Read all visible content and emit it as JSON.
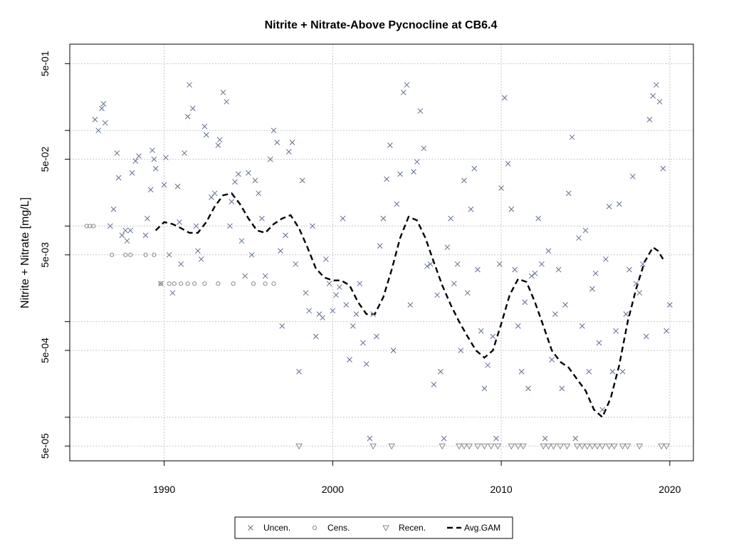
{
  "chart_data": {
    "type": "scatter",
    "title": "Nitrite + Nitrate-Above Pycnocline at CB6.4",
    "xlabel": "",
    "ylabel": "Nitrite + Nitrate [mg/L]",
    "xlim": [
      1984.4,
      2021.4
    ],
    "ylim": [
      3.5e-05,
      0.8
    ],
    "log_y": true,
    "grid": true,
    "x_ticks": [
      1990,
      2000,
      2010,
      2020
    ],
    "x_tick_labels": [
      "1990",
      "2000",
      "2010",
      "2020"
    ],
    "y_ticks": [
      5e-05,
      0.0005,
      0.005,
      0.05,
      0.5
    ],
    "y_tick_labels": [
      "5e-05",
      "5e-04",
      "5e-03",
      "5e-02",
      "5e-01"
    ],
    "legend_position": "bottom",
    "legend": [
      {
        "label": "Uncen.",
        "symbol": "x"
      },
      {
        "label": "Cens.",
        "symbol": "o"
      },
      {
        "label": "Recen.",
        "symbol": "triangle-down"
      },
      {
        "label": "Avg.GAM",
        "symbol": "dashed-line"
      }
    ],
    "colors": {
      "uncen": "#5f6f8f",
      "cens": "#8a8a8a",
      "recen": "#8a8a8a",
      "gam": "#000000",
      "grid": "#c8c8c8"
    },
    "series": [
      {
        "name": "Uncen.",
        "points": [
          [
            1985.9,
            0.13
          ],
          [
            1986.1,
            0.1
          ],
          [
            1986.3,
            0.17
          ],
          [
            1986.4,
            0.19
          ],
          [
            1986.5,
            0.12
          ],
          [
            1986.8,
            0.01
          ],
          [
            1987.0,
            0.015
          ],
          [
            1987.2,
            0.058
          ],
          [
            1987.3,
            0.032
          ],
          [
            1987.5,
            0.008
          ],
          [
            1987.7,
            0.009
          ],
          [
            1987.8,
            0.007
          ],
          [
            1988.0,
            0.009
          ],
          [
            1988.1,
            0.036
          ],
          [
            1988.3,
            0.048
          ],
          [
            1988.5,
            0.054
          ],
          [
            1988.9,
            0.008
          ],
          [
            1989.0,
            0.012
          ],
          [
            1989.2,
            0.024
          ],
          [
            1989.3,
            0.062
          ],
          [
            1989.4,
            0.05
          ],
          [
            1989.5,
            0.04
          ],
          [
            1989.8,
            0.0025
          ],
          [
            1990.0,
            0.027
          ],
          [
            1990.1,
            0.052
          ],
          [
            1990.3,
            0.005
          ],
          [
            1990.5,
            0.002
          ],
          [
            1990.8,
            0.026
          ],
          [
            1990.9,
            0.011
          ],
          [
            1991.0,
            0.004
          ],
          [
            1991.2,
            0.058
          ],
          [
            1991.4,
            0.14
          ],
          [
            1991.5,
            0.3
          ],
          [
            1991.7,
            0.17
          ],
          [
            1991.9,
            0.01
          ],
          [
            1992.0,
            0.0055
          ],
          [
            1992.2,
            0.0045
          ],
          [
            1992.4,
            0.11
          ],
          [
            1992.5,
            0.09
          ],
          [
            1992.8,
            0.02
          ],
          [
            1993.0,
            0.022
          ],
          [
            1993.2,
            0.07
          ],
          [
            1993.3,
            0.08
          ],
          [
            1993.5,
            0.25
          ],
          [
            1993.7,
            0.2
          ],
          [
            1993.9,
            0.01
          ],
          [
            1994.0,
            0.018
          ],
          [
            1994.2,
            0.029
          ],
          [
            1994.4,
            0.035
          ],
          [
            1994.6,
            0.007
          ],
          [
            1994.8,
            0.003
          ],
          [
            1995.0,
            0.036
          ],
          [
            1995.2,
            0.005
          ],
          [
            1995.4,
            0.03
          ],
          [
            1995.6,
            0.022
          ],
          [
            1995.8,
            0.012
          ],
          [
            1996.0,
            0.003
          ],
          [
            1996.3,
            0.05
          ],
          [
            1996.5,
            0.1
          ],
          [
            1996.7,
            0.075
          ],
          [
            1996.9,
            0.0055
          ],
          [
            1997.0,
            0.0009
          ],
          [
            1997.2,
            0.008
          ],
          [
            1997.4,
            0.06
          ],
          [
            1997.6,
            0.075
          ],
          [
            1997.8,
            0.004
          ],
          [
            1998.0,
            0.0003
          ],
          [
            1998.2,
            0.03
          ],
          [
            1998.4,
            0.002
          ],
          [
            1998.6,
            0.0013
          ],
          [
            1998.8,
            0.01
          ],
          [
            1999.0,
            0.0007
          ],
          [
            1999.2,
            0.0012
          ],
          [
            1999.4,
            0.0011
          ],
          [
            1999.6,
            0.0045
          ],
          [
            1999.8,
            0.0025
          ],
          [
            2000.0,
            0.0013
          ],
          [
            2000.2,
            0.0019
          ],
          [
            2000.4,
            0.0023
          ],
          [
            2000.6,
            0.012
          ],
          [
            2000.8,
            0.0015
          ],
          [
            2001.0,
            0.0004
          ],
          [
            2001.2,
            0.0009
          ],
          [
            2001.4,
            0.0012
          ],
          [
            2001.6,
            0.0025
          ],
          [
            2001.8,
            0.0006
          ],
          [
            2002.0,
            0.00036
          ],
          [
            2002.2,
            6e-05
          ],
          [
            2002.4,
            0.0012
          ],
          [
            2002.6,
            0.0007
          ],
          [
            2002.8,
            0.0062
          ],
          [
            2003.0,
            0.012
          ],
          [
            2003.2,
            0.031
          ],
          [
            2003.4,
            0.07
          ],
          [
            2003.6,
            0.0005
          ],
          [
            2003.8,
            0.017
          ],
          [
            2004.0,
            0.035
          ],
          [
            2004.2,
            0.25
          ],
          [
            2004.4,
            0.3
          ],
          [
            2004.6,
            0.0015
          ],
          [
            2004.8,
            0.037
          ],
          [
            2005.0,
            0.047
          ],
          [
            2005.2,
            0.16
          ],
          [
            2005.4,
            0.065
          ],
          [
            2005.6,
            0.0038
          ],
          [
            2005.8,
            0.004
          ],
          [
            2006.0,
            0.00022
          ],
          [
            2006.2,
            0.0019
          ],
          [
            2006.4,
            0.0003
          ],
          [
            2006.6,
            6e-05
          ],
          [
            2006.8,
            0.006
          ],
          [
            2007.0,
            0.012
          ],
          [
            2007.2,
            0.0025
          ],
          [
            2007.4,
            0.004
          ],
          [
            2007.6,
            0.0005
          ],
          [
            2007.8,
            0.03
          ],
          [
            2008.0,
            0.002
          ],
          [
            2008.2,
            0.015
          ],
          [
            2008.4,
            0.04
          ],
          [
            2008.6,
            0.0035
          ],
          [
            2008.8,
            0.0008
          ],
          [
            2009.0,
            0.0002
          ],
          [
            2009.2,
            0.00035
          ],
          [
            2009.5,
            0.0007
          ],
          [
            2009.7,
            6e-05
          ],
          [
            2009.9,
            0.004
          ],
          [
            2010.0,
            0.025
          ],
          [
            2010.2,
            0.22
          ],
          [
            2010.4,
            0.045
          ],
          [
            2010.6,
            0.015
          ],
          [
            2010.8,
            0.0035
          ],
          [
            2011.0,
            0.0009
          ],
          [
            2011.2,
            0.0003
          ],
          [
            2011.4,
            0.0016
          ],
          [
            2011.6,
            0.0002
          ],
          [
            2011.8,
            0.003
          ],
          [
            2012.0,
            0.0032
          ],
          [
            2012.2,
            0.012
          ],
          [
            2012.4,
            0.004
          ],
          [
            2012.6,
            6e-05
          ],
          [
            2012.8,
            0.0055
          ],
          [
            2013.0,
            0.0004
          ],
          [
            2013.2,
            0.0012
          ],
          [
            2013.4,
            0.0035
          ],
          [
            2013.6,
            0.0002
          ],
          [
            2013.8,
            0.0015
          ],
          [
            2014.0,
            0.022
          ],
          [
            2014.2,
            0.085
          ],
          [
            2014.4,
            6e-05
          ],
          [
            2014.6,
            0.0075
          ],
          [
            2014.8,
            0.0009
          ],
          [
            2015.0,
            0.009
          ],
          [
            2015.2,
            0.0003
          ],
          [
            2015.4,
            0.0022
          ],
          [
            2015.6,
            0.0032
          ],
          [
            2015.8,
            0.0006
          ],
          [
            2016.0,
            0.00012
          ],
          [
            2016.2,
            0.0045
          ],
          [
            2016.4,
            0.016
          ],
          [
            2016.6,
            0.0003
          ],
          [
            2016.8,
            0.0008
          ],
          [
            2017.0,
            0.017
          ],
          [
            2017.2,
            0.0003
          ],
          [
            2017.4,
            0.0012
          ],
          [
            2017.6,
            0.0035
          ],
          [
            2017.8,
            0.033
          ],
          [
            2018.0,
            0.0025
          ],
          [
            2018.2,
            0.002
          ],
          [
            2018.4,
            0.004
          ],
          [
            2018.6,
            0.0007
          ],
          [
            2018.8,
            0.13
          ],
          [
            2019.0,
            0.23
          ],
          [
            2019.2,
            0.3
          ],
          [
            2019.4,
            0.2
          ],
          [
            2019.6,
            0.04
          ],
          [
            2019.8,
            0.0008
          ],
          [
            2020.0,
            0.0015
          ]
        ]
      },
      {
        "name": "Cens.",
        "points": [
          [
            1985.4,
            0.01
          ],
          [
            1985.6,
            0.01
          ],
          [
            1985.8,
            0.01
          ],
          [
            1986.9,
            0.005
          ],
          [
            1987.7,
            0.005
          ],
          [
            1988.0,
            0.005
          ],
          [
            1988.9,
            0.005
          ],
          [
            1989.4,
            0.005
          ],
          [
            1989.8,
            0.0025
          ],
          [
            1990.3,
            0.0025
          ],
          [
            1990.6,
            0.0025
          ],
          [
            1991.0,
            0.0025
          ],
          [
            1991.4,
            0.0025
          ],
          [
            1991.8,
            0.0025
          ],
          [
            1992.4,
            0.0025
          ],
          [
            1993.2,
            0.0025
          ],
          [
            1994.1,
            0.0025
          ],
          [
            1995.3,
            0.0025
          ],
          [
            1996.0,
            0.0025
          ],
          [
            1996.5,
            0.0025
          ]
        ]
      },
      {
        "name": "Recen.",
        "points": [
          [
            1998.0,
            5e-05
          ],
          [
            2002.4,
            5e-05
          ],
          [
            2003.5,
            5e-05
          ],
          [
            2006.5,
            5e-05
          ],
          [
            2007.5,
            5e-05
          ],
          [
            2007.8,
            5e-05
          ],
          [
            2008.1,
            5e-05
          ],
          [
            2008.6,
            5e-05
          ],
          [
            2009.0,
            5e-05
          ],
          [
            2009.4,
            5e-05
          ],
          [
            2009.8,
            5e-05
          ],
          [
            2010.6,
            5e-05
          ],
          [
            2011.0,
            5e-05
          ],
          [
            2011.3,
            5e-05
          ],
          [
            2012.5,
            5e-05
          ],
          [
            2012.8,
            5e-05
          ],
          [
            2013.1,
            5e-05
          ],
          [
            2013.5,
            5e-05
          ],
          [
            2013.9,
            5e-05
          ],
          [
            2014.5,
            5e-05
          ],
          [
            2014.8,
            5e-05
          ],
          [
            2015.1,
            5e-05
          ],
          [
            2015.4,
            5e-05
          ],
          [
            2015.7,
            5e-05
          ],
          [
            2016.0,
            5e-05
          ],
          [
            2016.4,
            5e-05
          ],
          [
            2016.7,
            5e-05
          ],
          [
            2017.2,
            5e-05
          ],
          [
            2017.5,
            5e-05
          ],
          [
            2018.2,
            5e-05
          ],
          [
            2019.5,
            5e-05
          ],
          [
            2019.8,
            5e-05
          ]
        ]
      },
      {
        "name": "Avg.GAM",
        "points": [
          [
            1989.5,
            0.009
          ],
          [
            1990.0,
            0.011
          ],
          [
            1990.5,
            0.0105
          ],
          [
            1991.0,
            0.0095
          ],
          [
            1991.5,
            0.0085
          ],
          [
            1992.0,
            0.0085
          ],
          [
            1992.5,
            0.011
          ],
          [
            1993.0,
            0.016
          ],
          [
            1993.5,
            0.021
          ],
          [
            1994.0,
            0.022
          ],
          [
            1994.5,
            0.017
          ],
          [
            1995.0,
            0.012
          ],
          [
            1995.5,
            0.009
          ],
          [
            1996.0,
            0.0085
          ],
          [
            1996.5,
            0.0105
          ],
          [
            1997.0,
            0.012
          ],
          [
            1997.5,
            0.013
          ],
          [
            1998.0,
            0.0095
          ],
          [
            1998.5,
            0.006
          ],
          [
            1999.0,
            0.0036
          ],
          [
            1999.5,
            0.0029
          ],
          [
            2000.0,
            0.0027
          ],
          [
            2000.5,
            0.0027
          ],
          [
            2001.0,
            0.0024
          ],
          [
            2001.5,
            0.0016
          ],
          [
            2002.0,
            0.0012
          ],
          [
            2002.5,
            0.0012
          ],
          [
            2003.0,
            0.0018
          ],
          [
            2003.5,
            0.0035
          ],
          [
            2004.0,
            0.0075
          ],
          [
            2004.5,
            0.0125
          ],
          [
            2005.0,
            0.0115
          ],
          [
            2005.5,
            0.0075
          ],
          [
            2006.0,
            0.0042
          ],
          [
            2006.5,
            0.0024
          ],
          [
            2007.0,
            0.0015
          ],
          [
            2007.5,
            0.001
          ],
          [
            2008.0,
            0.0007
          ],
          [
            2008.5,
            0.0005
          ],
          [
            2009.0,
            0.00042
          ],
          [
            2009.5,
            0.0005
          ],
          [
            2010.0,
            0.00095
          ],
          [
            2010.5,
            0.0019
          ],
          [
            2011.0,
            0.0028
          ],
          [
            2011.5,
            0.0026
          ],
          [
            2012.0,
            0.0016
          ],
          [
            2012.5,
            0.0009
          ],
          [
            2013.0,
            0.0005
          ],
          [
            2013.5,
            0.00038
          ],
          [
            2014.0,
            0.00033
          ],
          [
            2014.5,
            0.00025
          ],
          [
            2015.0,
            0.00019
          ],
          [
            2015.5,
            0.00012
          ],
          [
            2016.0,
            0.0001
          ],
          [
            2016.5,
            0.00016
          ],
          [
            2017.0,
            0.00035
          ],
          [
            2017.5,
            0.001
          ],
          [
            2018.0,
            0.0022
          ],
          [
            2018.5,
            0.0042
          ],
          [
            2019.0,
            0.006
          ],
          [
            2019.3,
            0.0055
          ],
          [
            2019.6,
            0.0045
          ]
        ]
      }
    ]
  }
}
